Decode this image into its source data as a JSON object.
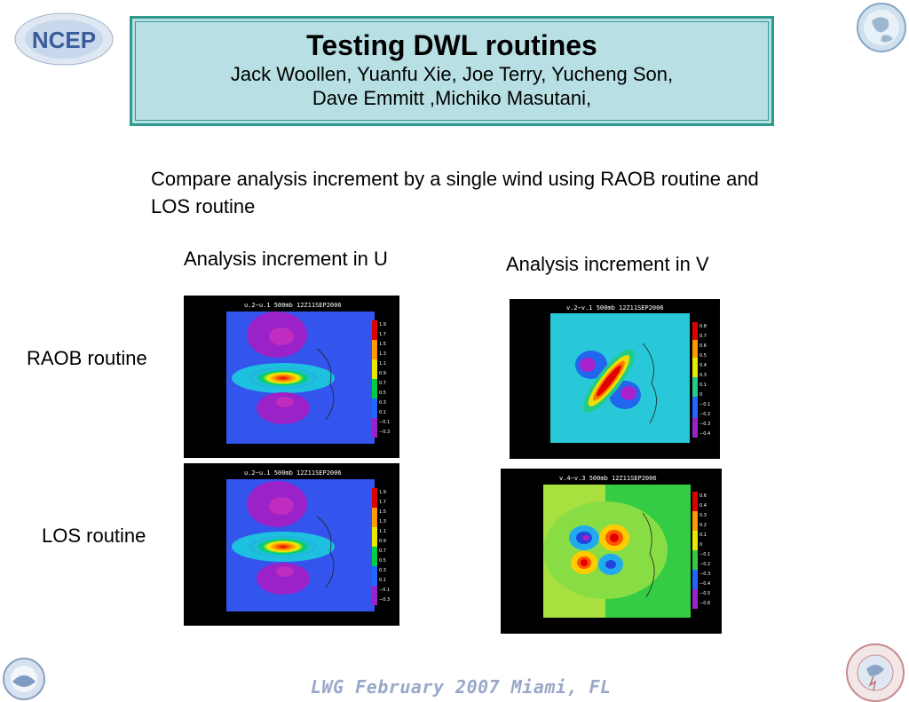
{
  "header": {
    "title": "Testing DWL routines",
    "authors_line1": "Jack Woollen, Yuanfu Xie, Joe Terry, Yucheng Son,",
    "authors_line2": "Dave Emmitt ,Michiko Masutani,"
  },
  "intro_text": "Compare analysis increment by a single wind using RAOB routine and LOS routine",
  "column_labels": {
    "u": "Analysis increment in U",
    "v": "Analysis increment in V"
  },
  "row_labels": {
    "raob": "RAOB routine",
    "los": "LOS routine"
  },
  "plots": {
    "raob_u": {
      "title": "u.2−u.1  500mb  12Z11SEP2006",
      "colorbar": [
        "1.9",
        "1.7",
        "1.5",
        "1.3",
        "1.1",
        "0.9",
        "0.7",
        "0.5",
        "0.3",
        "0.1",
        "−0.1",
        "−0.3"
      ]
    },
    "raob_v": {
      "title": "v.2−v.1  500mb  12Z11SEP2006",
      "colorbar": [
        "0.8",
        "0.7",
        "0.6",
        "0.5",
        "0.4",
        "0.3",
        "0.1",
        "0",
        "−0.1",
        "−0.2",
        "−0.3",
        "−0.4"
      ]
    },
    "los_u": {
      "title": "u.2−u.1  500mb  12Z11SEP2006",
      "colorbar": [
        "1.9",
        "1.7",
        "1.5",
        "1.3",
        "1.1",
        "0.9",
        "0.7",
        "0.5",
        "0.3",
        "0.1",
        "−0.1",
        "−0.3"
      ]
    },
    "los_v": {
      "title": "v.4−v.3  500mb  12Z11SEP2006",
      "colorbar": [
        "0.6",
        "0.4",
        "0.3",
        "0.2",
        "0.1",
        "0",
        "−0.1",
        "−0.2",
        "−0.3",
        "−0.4",
        "−0.5",
        "−0.6"
      ]
    }
  },
  "logos": {
    "ncep": "NCEP"
  },
  "footer": "LWG  February 2007 Miami, FL",
  "colors": {
    "title_bg": "#b8e0e4",
    "title_border": "#2e9a8e",
    "footer_text": "#9aa8c8"
  }
}
